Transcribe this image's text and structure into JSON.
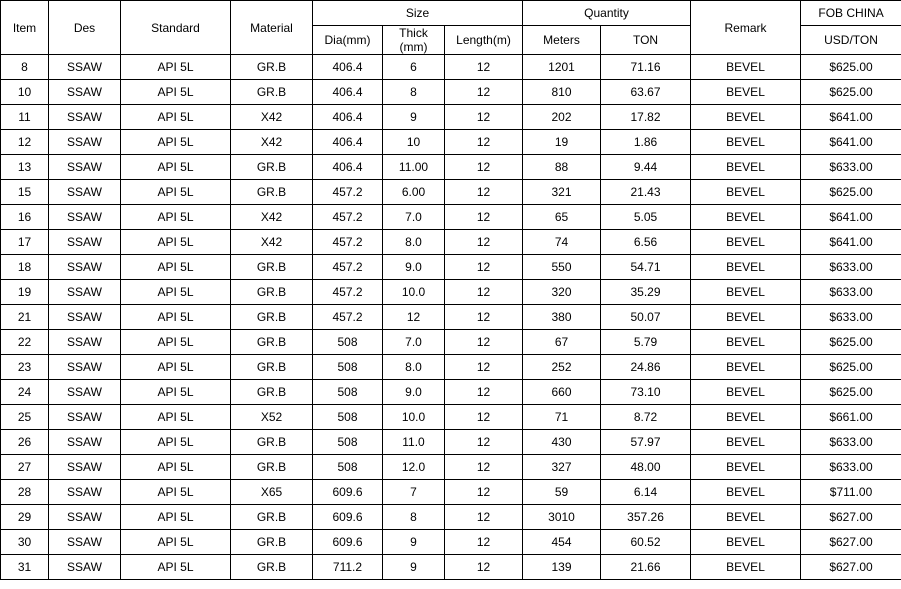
{
  "header": {
    "item": "Item",
    "des": "Des",
    "standard": "Standard",
    "material": "Material",
    "size": "Size",
    "dia": "Dia(mm)",
    "thick_l1": "Thick",
    "thick_l2": "(mm)",
    "length": "Length(m)",
    "quantity": "Quantity",
    "meters": "Meters",
    "ton": "TON",
    "remark": "Remark",
    "fob": "FOB CHINA",
    "usdton": "USD/TON"
  },
  "rows": [
    {
      "item": "8",
      "des": "SSAW",
      "std": "API 5L",
      "mat": "GR.B",
      "dia": "406.4",
      "thick": "6",
      "len": "12",
      "meters": "1201",
      "ton": "71.16",
      "remark": "BEVEL",
      "fob": "$625.00"
    },
    {
      "item": "10",
      "des": "SSAW",
      "std": "API 5L",
      "mat": "GR.B",
      "dia": "406.4",
      "thick": "8",
      "len": "12",
      "meters": "810",
      "ton": "63.67",
      "remark": "BEVEL",
      "fob": "$625.00"
    },
    {
      "item": "11",
      "des": "SSAW",
      "std": "API 5L",
      "mat": "X42",
      "dia": "406.4",
      "thick": "9",
      "len": "12",
      "meters": "202",
      "ton": "17.82",
      "remark": "BEVEL",
      "fob": "$641.00"
    },
    {
      "item": "12",
      "des": "SSAW",
      "std": "API 5L",
      "mat": "X42",
      "dia": "406.4",
      "thick": "10",
      "len": "12",
      "meters": "19",
      "ton": "1.86",
      "remark": "BEVEL",
      "fob": "$641.00"
    },
    {
      "item": "13",
      "des": "SSAW",
      "std": "API 5L",
      "mat": "GR.B",
      "dia": "406.4",
      "thick": "11.00",
      "len": "12",
      "meters": "88",
      "ton": "9.44",
      "remark": "BEVEL",
      "fob": "$633.00"
    },
    {
      "item": "15",
      "des": "SSAW",
      "std": "API 5L",
      "mat": "GR.B",
      "dia": "457.2",
      "thick": "6.00",
      "len": "12",
      "meters": "321",
      "ton": "21.43",
      "remark": "BEVEL",
      "fob": "$625.00"
    },
    {
      "item": "16",
      "des": "SSAW",
      "std": "API 5L",
      "mat": "X42",
      "dia": "457.2",
      "thick": "7.0",
      "len": "12",
      "meters": "65",
      "ton": "5.05",
      "remark": "BEVEL",
      "fob": "$641.00"
    },
    {
      "item": "17",
      "des": "SSAW",
      "std": "API 5L",
      "mat": "X42",
      "dia": "457.2",
      "thick": "8.0",
      "len": "12",
      "meters": "74",
      "ton": "6.56",
      "remark": "BEVEL",
      "fob": "$641.00"
    },
    {
      "item": "18",
      "des": "SSAW",
      "std": "API 5L",
      "mat": "GR.B",
      "dia": "457.2",
      "thick": "9.0",
      "len": "12",
      "meters": "550",
      "ton": "54.71",
      "remark": "BEVEL",
      "fob": "$633.00"
    },
    {
      "item": "19",
      "des": "SSAW",
      "std": "API 5L",
      "mat": "GR.B",
      "dia": "457.2",
      "thick": "10.0",
      "len": "12",
      "meters": "320",
      "ton": "35.29",
      "remark": "BEVEL",
      "fob": "$633.00"
    },
    {
      "item": "21",
      "des": "SSAW",
      "std": "API 5L",
      "mat": "GR.B",
      "dia": "457.2",
      "thick": "12",
      "len": "12",
      "meters": "380",
      "ton": "50.07",
      "remark": "BEVEL",
      "fob": "$633.00"
    },
    {
      "item": "22",
      "des": "SSAW",
      "std": "API 5L",
      "mat": "GR.B",
      "dia": "508",
      "thick": "7.0",
      "len": "12",
      "meters": "67",
      "ton": "5.79",
      "remark": "BEVEL",
      "fob": "$625.00"
    },
    {
      "item": "23",
      "des": "SSAW",
      "std": "API 5L",
      "mat": "GR.B",
      "dia": "508",
      "thick": "8.0",
      "len": "12",
      "meters": "252",
      "ton": "24.86",
      "remark": "BEVEL",
      "fob": "$625.00"
    },
    {
      "item": "24",
      "des": "SSAW",
      "std": "API 5L",
      "mat": "GR.B",
      "dia": "508",
      "thick": "9.0",
      "len": "12",
      "meters": "660",
      "ton": "73.10",
      "remark": "BEVEL",
      "fob": "$625.00"
    },
    {
      "item": "25",
      "des": "SSAW",
      "std": "API 5L",
      "mat": "X52",
      "dia": "508",
      "thick": "10.0",
      "len": "12",
      "meters": "71",
      "ton": "8.72",
      "remark": "BEVEL",
      "fob": "$661.00"
    },
    {
      "item": "26",
      "des": "SSAW",
      "std": "API 5L",
      "mat": "GR.B",
      "dia": "508",
      "thick": "11.0",
      "len": "12",
      "meters": "430",
      "ton": "57.97",
      "remark": "BEVEL",
      "fob": "$633.00"
    },
    {
      "item": "27",
      "des": "SSAW",
      "std": "API 5L",
      "mat": "GR.B",
      "dia": "508",
      "thick": "12.0",
      "len": "12",
      "meters": "327",
      "ton": "48.00",
      "remark": "BEVEL",
      "fob": "$633.00"
    },
    {
      "item": "28",
      "des": "SSAW",
      "std": "API 5L",
      "mat": "X65",
      "dia": "609.6",
      "thick": "7",
      "len": "12",
      "meters": "59",
      "ton": "6.14",
      "remark": "BEVEL",
      "fob": "$711.00"
    },
    {
      "item": "29",
      "des": "SSAW",
      "std": "API 5L",
      "mat": "GR.B",
      "dia": "609.6",
      "thick": "8",
      "len": "12",
      "meters": "3010",
      "ton": "357.26",
      "remark": "BEVEL",
      "fob": "$627.00"
    },
    {
      "item": "30",
      "des": "SSAW",
      "std": "API 5L",
      "mat": "GR.B",
      "dia": "609.6",
      "thick": "9",
      "len": "12",
      "meters": "454",
      "ton": "60.52",
      "remark": "BEVEL",
      "fob": "$627.00"
    },
    {
      "item": "31",
      "des": "SSAW",
      "std": "API 5L",
      "mat": "GR.B",
      "dia": "711.2",
      "thick": "9",
      "len": "12",
      "meters": "139",
      "ton": "21.66",
      "remark": "BEVEL",
      "fob": "$627.00"
    }
  ]
}
